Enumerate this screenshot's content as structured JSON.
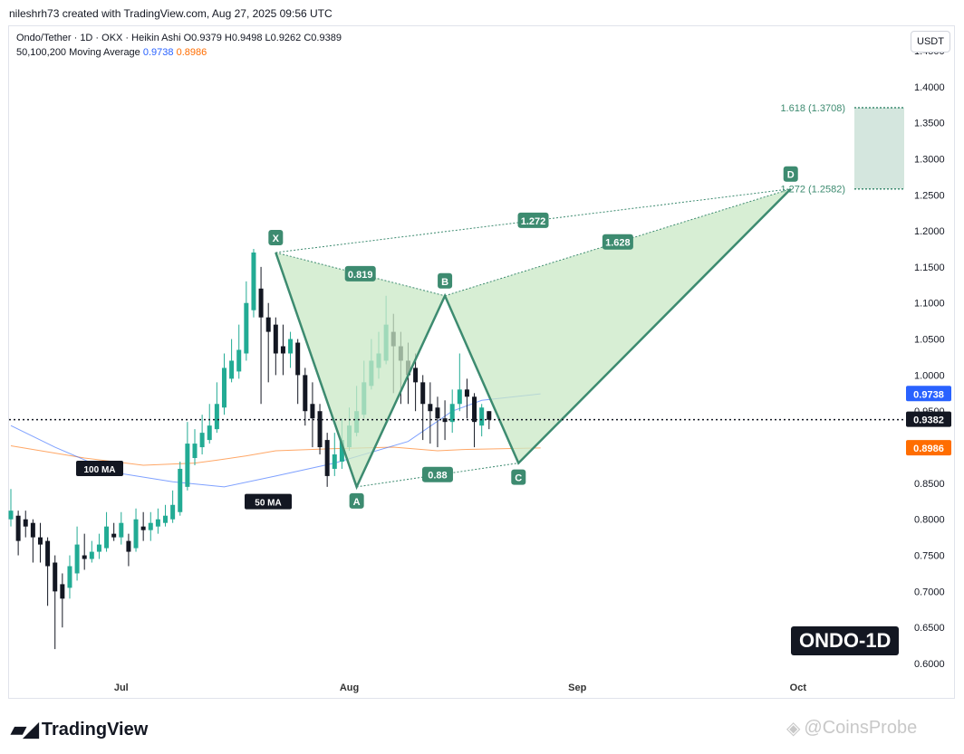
{
  "header": {
    "credit": "nileshrh73 created with TradingView.com, Aug 27, 2025 09:56 UTC"
  },
  "legend": {
    "line1": "Ondo/Tether · 1D · OKX · Heikin Ashi  O0.9379  H0.9498  L0.9262  C0.9389",
    "ma_label": "50,100,200 Moving Average",
    "ma50_value": "0.9738",
    "ma100_value": "0.8986"
  },
  "currency_button": "USDT",
  "symbol_badge": "ONDO-1D",
  "branding": {
    "logo_text": "TradingView",
    "watermark": "@CoinsProbe"
  },
  "colors": {
    "up": "#22ab94",
    "down": "#131722",
    "ma50": "#2962ff",
    "ma100": "#ff6d00",
    "pattern": "#3d8b70",
    "pattern_fill": "#c9e8c6",
    "target_zone": "#cfe3da"
  },
  "chart_data": {
    "type": "candlestick",
    "ylim": [
      0.59,
      1.47
    ],
    "y_ticks": [
      "1.4500",
      "1.4000",
      "1.3500",
      "1.3000",
      "1.2500",
      "1.2000",
      "1.1500",
      "1.1000",
      "1.0500",
      "1.0000",
      "0.9500",
      "0.8500",
      "0.8000",
      "0.7500",
      "0.7000",
      "0.6500",
      "0.6000"
    ],
    "x_ticks": [
      "Jul",
      "Aug",
      "Sep",
      "Oct"
    ],
    "price_labels": {
      "last": "0.9382",
      "ma50": "0.9738",
      "ma100": "0.8986"
    },
    "ma_tags": [
      "100 MA",
      "50 MA"
    ],
    "pattern": {
      "points": [
        {
          "label": "X",
          "x": "2025-07-22",
          "y": 1.17
        },
        {
          "label": "A",
          "x": "2025-08-02",
          "y": 0.845
        },
        {
          "label": "B",
          "x": "2025-08-14",
          "y": 1.11
        },
        {
          "label": "C",
          "x": "2025-08-24",
          "y": 0.878
        },
        {
          "label": "D",
          "x": "2025-09-30",
          "y": 1.2582
        }
      ],
      "ratios": [
        "0.819",
        "0.88",
        "1.628",
        "1.272"
      ],
      "targets": [
        {
          "label": "1.618 (1.3708)",
          "y": 1.3708
        },
        {
          "label": "1.272 (1.2582)",
          "y": 1.2582
        }
      ]
    },
    "candles": [
      {
        "o": 0.8,
        "c": 0.812,
        "h": 0.842,
        "l": 0.79
      },
      {
        "o": 0.805,
        "c": 0.77,
        "h": 0.812,
        "l": 0.75
      },
      {
        "o": 0.8,
        "c": 0.79,
        "h": 0.812,
        "l": 0.775
      },
      {
        "o": 0.795,
        "c": 0.775,
        "h": 0.8,
        "l": 0.74
      },
      {
        "o": 0.775,
        "c": 0.765,
        "h": 0.795,
        "l": 0.74
      },
      {
        "o": 0.77,
        "c": 0.735,
        "h": 0.775,
        "l": 0.68
      },
      {
        "o": 0.74,
        "c": 0.7,
        "h": 0.75,
        "l": 0.62
      },
      {
        "o": 0.71,
        "c": 0.69,
        "h": 0.725,
        "l": 0.65
      },
      {
        "o": 0.705,
        "c": 0.735,
        "h": 0.75,
        "l": 0.69
      },
      {
        "o": 0.725,
        "c": 0.765,
        "h": 0.79,
        "l": 0.715
      },
      {
        "o": 0.75,
        "c": 0.745,
        "h": 0.78,
        "l": 0.73
      },
      {
        "o": 0.745,
        "c": 0.755,
        "h": 0.77,
        "l": 0.74
      },
      {
        "o": 0.755,
        "c": 0.765,
        "h": 0.78,
        "l": 0.745
      },
      {
        "o": 0.76,
        "c": 0.79,
        "h": 0.81,
        "l": 0.755
      },
      {
        "o": 0.78,
        "c": 0.775,
        "h": 0.795,
        "l": 0.77
      },
      {
        "o": 0.775,
        "c": 0.795,
        "h": 0.81,
        "l": 0.765
      },
      {
        "o": 0.77,
        "c": 0.755,
        "h": 0.78,
        "l": 0.735
      },
      {
        "o": 0.76,
        "c": 0.8,
        "h": 0.815,
        "l": 0.755
      },
      {
        "o": 0.79,
        "c": 0.785,
        "h": 0.81,
        "l": 0.77
      },
      {
        "o": 0.785,
        "c": 0.795,
        "h": 0.81,
        "l": 0.77
      },
      {
        "o": 0.79,
        "c": 0.8,
        "h": 0.815,
        "l": 0.78
      },
      {
        "o": 0.795,
        "c": 0.805,
        "h": 0.82,
        "l": 0.79
      },
      {
        "o": 0.8,
        "c": 0.82,
        "h": 0.84,
        "l": 0.795
      },
      {
        "o": 0.81,
        "c": 0.87,
        "h": 0.88,
        "l": 0.805
      },
      {
        "o": 0.845,
        "c": 0.905,
        "h": 0.935,
        "l": 0.84
      },
      {
        "o": 0.885,
        "c": 0.905,
        "h": 0.925,
        "l": 0.875
      },
      {
        "o": 0.9,
        "c": 0.92,
        "h": 0.945,
        "l": 0.89
      },
      {
        "o": 0.91,
        "c": 0.93,
        "h": 0.96,
        "l": 0.905
      },
      {
        "o": 0.925,
        "c": 0.96,
        "h": 0.99,
        "l": 0.92
      },
      {
        "o": 0.955,
        "c": 1.01,
        "h": 1.03,
        "l": 0.945
      },
      {
        "o": 0.995,
        "c": 1.02,
        "h": 1.05,
        "l": 0.99
      },
      {
        "o": 1.005,
        "c": 1.035,
        "h": 1.07,
        "l": 0.995
      },
      {
        "o": 1.03,
        "c": 1.1,
        "h": 1.13,
        "l": 1.02
      },
      {
        "o": 1.09,
        "c": 1.17,
        "h": 1.175,
        "l": 1.08
      },
      {
        "o": 1.12,
        "c": 1.08,
        "h": 1.15,
        "l": 0.96
      },
      {
        "o": 1.08,
        "c": 1.06,
        "h": 1.1,
        "l": 0.99
      },
      {
        "o": 1.07,
        "c": 1.03,
        "h": 1.08,
        "l": 1.0
      },
      {
        "o": 1.04,
        "c": 1.03,
        "h": 1.07,
        "l": 1.0
      },
      {
        "o": 1.03,
        "c": 1.05,
        "h": 1.06,
        "l": 1.01
      },
      {
        "o": 1.045,
        "c": 1.0,
        "h": 1.05,
        "l": 0.96
      },
      {
        "o": 1.0,
        "c": 0.95,
        "h": 1.01,
        "l": 0.93
      },
      {
        "o": 0.96,
        "c": 0.94,
        "h": 0.99,
        "l": 0.9
      },
      {
        "o": 0.95,
        "c": 0.9,
        "h": 0.96,
        "l": 0.89
      },
      {
        "o": 0.91,
        "c": 0.86,
        "h": 0.92,
        "l": 0.845
      },
      {
        "o": 0.87,
        "c": 0.89,
        "h": 0.92,
        "l": 0.86
      },
      {
        "o": 0.88,
        "c": 0.91,
        "h": 0.94,
        "l": 0.87
      },
      {
        "o": 0.9,
        "c": 0.93,
        "h": 0.955,
        "l": 0.895
      },
      {
        "o": 0.92,
        "c": 0.95,
        "h": 0.985,
        "l": 0.915
      },
      {
        "o": 0.945,
        "c": 0.99,
        "h": 1.02,
        "l": 0.94
      },
      {
        "o": 0.985,
        "c": 1.02,
        "h": 1.05,
        "l": 0.98
      },
      {
        "o": 1.01,
        "c": 1.03,
        "h": 1.06,
        "l": 0.995
      },
      {
        "o": 1.02,
        "c": 1.07,
        "h": 1.11,
        "l": 1.015
      },
      {
        "o": 1.06,
        "c": 1.04,
        "h": 1.085,
        "l": 0.975
      },
      {
        "o": 1.04,
        "c": 1.02,
        "h": 1.06,
        "l": 0.96
      },
      {
        "o": 1.02,
        "c": 1.0,
        "h": 1.045,
        "l": 0.96
      },
      {
        "o": 1.01,
        "c": 0.99,
        "h": 1.03,
        "l": 0.95
      },
      {
        "o": 0.99,
        "c": 0.96,
        "h": 1.0,
        "l": 0.91
      },
      {
        "o": 0.96,
        "c": 0.95,
        "h": 0.99,
        "l": 0.905
      },
      {
        "o": 0.955,
        "c": 0.94,
        "h": 0.97,
        "l": 0.9
      },
      {
        "o": 0.94,
        "c": 0.935,
        "h": 0.965,
        "l": 0.91
      },
      {
        "o": 0.935,
        "c": 0.96,
        "h": 0.98,
        "l": 0.92
      },
      {
        "o": 0.96,
        "c": 0.98,
        "h": 1.03,
        "l": 0.95
      },
      {
        "o": 0.98,
        "c": 0.97,
        "h": 0.995,
        "l": 0.94
      },
      {
        "o": 0.97,
        "c": 0.935,
        "h": 0.975,
        "l": 0.9
      },
      {
        "o": 0.93,
        "c": 0.955,
        "h": 0.96,
        "l": 0.915
      },
      {
        "o": 0.95,
        "c": 0.938,
        "h": 0.95,
        "l": 0.925
      }
    ]
  }
}
